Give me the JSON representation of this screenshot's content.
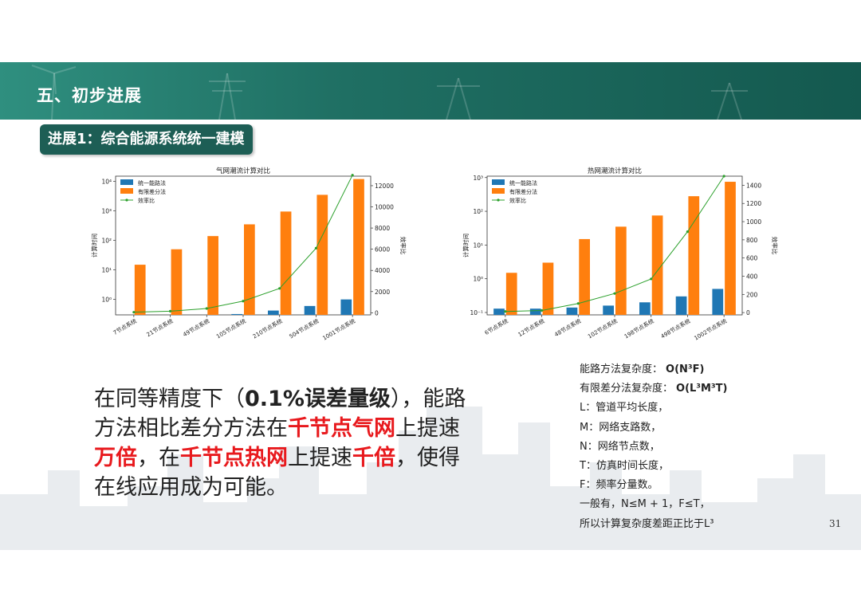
{
  "header": {
    "section_title": "五、初步进展",
    "subtitle": "进展1：综合能源系统统一建模"
  },
  "chart_data": [
    {
      "type": "bar",
      "title": "气网潮流计算对比",
      "ylabel": "计算时间",
      "y2label": "效率比",
      "yscale": "log",
      "ylim": [
        0.3,
        15000
      ],
      "y2lim": [
        -200,
        12900
      ],
      "categories": [
        "7节点系统",
        "21节点系统",
        "49节点系统",
        "105节点系统",
        "210节点系统",
        "504节点系统",
        "1001节点系统"
      ],
      "series": [
        {
          "name": "统一能路法",
          "axis": "left",
          "color": "#1f77b4",
          "values": [
            0.25,
            0.28,
            0.3,
            0.32,
            0.42,
            0.6,
            1.0
          ]
        },
        {
          "name": "有限差分法",
          "axis": "left",
          "color": "#ff7f0e",
          "values": [
            15,
            50,
            140,
            350,
            950,
            3500,
            12000
          ]
        },
        {
          "name": "效率比",
          "axis": "right",
          "type": "line",
          "color": "#2ca02c",
          "values": [
            50,
            150,
            400,
            1100,
            2300,
            6100,
            13000
          ]
        }
      ],
      "yticks": [
        {
          "v": 1,
          "label": "10⁰"
        },
        {
          "v": 10,
          "label": "10¹"
        },
        {
          "v": 100,
          "label": "10²"
        },
        {
          "v": 1000,
          "label": "10³"
        },
        {
          "v": 10000,
          "label": "10⁴"
        }
      ],
      "y2ticks": [
        0,
        2000,
        4000,
        6000,
        8000,
        10000,
        12000
      ],
      "legend": "top-left"
    },
    {
      "type": "bar",
      "title": "热网潮流计算对比",
      "ylabel": "计算时间",
      "y2label": "效率比",
      "yscale": "log",
      "ylim": [
        0.085,
        1100
      ],
      "y2lim": [
        -25,
        1500
      ],
      "categories": [
        "6节点系统",
        "12节点系统",
        "48节点系统",
        "102节点系统",
        "198节点系统",
        "498节点系统",
        "1002节点系统"
      ],
      "series": [
        {
          "name": "统一能路法",
          "axis": "left",
          "color": "#1f77b4",
          "values": [
            0.13,
            0.13,
            0.14,
            0.16,
            0.2,
            0.3,
            0.5
          ]
        },
        {
          "name": "有限差分法",
          "axis": "left",
          "color": "#ff7f0e",
          "values": [
            1.5,
            3,
            15,
            35,
            75,
            280,
            750
          ]
        },
        {
          "name": "效率比",
          "axis": "right",
          "type": "line",
          "color": "#2ca02c",
          "values": [
            12,
            23,
            100,
            210,
            370,
            890,
            1500
          ]
        }
      ],
      "yticks": [
        {
          "v": 0.1,
          "label": "10⁻¹"
        },
        {
          "v": 1,
          "label": "10⁰"
        },
        {
          "v": 10,
          "label": "10¹"
        },
        {
          "v": 100,
          "label": "10²"
        },
        {
          "v": 1000,
          "label": "10³"
        }
      ],
      "y2ticks": [
        0,
        200,
        400,
        600,
        800,
        1000,
        1200,
        1400
      ],
      "legend": "top-left"
    }
  ],
  "main_text": {
    "p1": "在同等精度下（",
    "p2": "0.1%误差量级",
    "p3": "），能路方法相比差分方法在",
    "p4": "千节点气网",
    "p5": "上提速",
    "p6": "万倍",
    "p7": "，在",
    "p8": "千节点热网",
    "p9": "上提速",
    "p10": "千倍",
    "p11": "，使得在线应用成为可能。"
  },
  "notes": {
    "l1_label": "能路方法复杂度：",
    "l1_formula": "O(N³F)",
    "l2_label": "有限差分法复杂度：",
    "l2_formula": "O(L³M³T)",
    "l3": "L：管道平均长度，",
    "l4": "M：网络支路数，",
    "l5": "N：网络节点数，",
    "l6": "T：仿真时间长度，",
    "l7": "F：频率分量数。",
    "l8": "一般有，N≤M + 1，F≤T，",
    "l9": "所以计算复杂度差距正比于L³"
  },
  "page_number": "31"
}
